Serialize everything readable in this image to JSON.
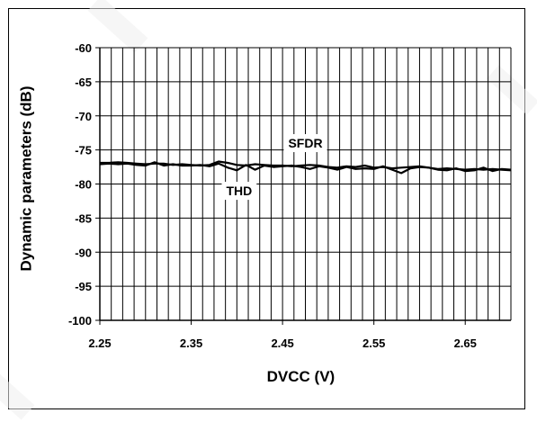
{
  "chart_data": {
    "type": "line",
    "xlabel": "DVCC (V)",
    "ylabel": "Dynamic parameters (dB)",
    "xlim": [
      2.25,
      2.7
    ],
    "ylim": [
      -100,
      -60
    ],
    "xticks": [
      2.25,
      2.35,
      2.45,
      2.55,
      2.65
    ],
    "yticks": [
      -60,
      -65,
      -70,
      -75,
      -80,
      -85,
      -90,
      -95,
      -100
    ],
    "x_gridline_step": 0.0125,
    "grid": true,
    "legend": "none",
    "annotations": [
      {
        "text": "SFDR",
        "series": "SFDR"
      },
      {
        "text": "THD",
        "series": "THD"
      }
    ],
    "series": [
      {
        "name": "SFDR",
        "x": [
          2.25,
          2.26,
          2.27,
          2.28,
          2.29,
          2.3,
          2.31,
          2.32,
          2.33,
          2.34,
          2.35,
          2.36,
          2.37,
          2.38,
          2.39,
          2.4,
          2.41,
          2.42,
          2.43,
          2.44,
          2.45,
          2.46,
          2.47,
          2.48,
          2.49,
          2.5,
          2.51,
          2.52,
          2.53,
          2.54,
          2.55,
          2.56,
          2.57,
          2.58,
          2.59,
          2.6,
          2.61,
          2.62,
          2.63,
          2.64,
          2.65,
          2.66,
          2.67,
          2.68,
          2.69,
          2.7
        ],
        "values": [
          -76.9,
          -76.9,
          -76.8,
          -76.9,
          -77.0,
          -77.1,
          -77.0,
          -77.0,
          -77.2,
          -77.1,
          -77.2,
          -77.3,
          -77.2,
          -76.7,
          -76.9,
          -77.2,
          -77.3,
          -77.1,
          -77.2,
          -77.3,
          -77.3,
          -77.4,
          -77.3,
          -77.2,
          -77.3,
          -77.5,
          -77.6,
          -77.4,
          -77.5,
          -77.3,
          -77.6,
          -77.5,
          -77.7,
          -77.6,
          -77.5,
          -77.4,
          -77.6,
          -77.8,
          -77.7,
          -77.8,
          -77.9,
          -77.8,
          -77.9,
          -77.8,
          -77.9,
          -78.0
        ]
      },
      {
        "name": "THD",
        "x": [
          2.25,
          2.26,
          2.27,
          2.28,
          2.29,
          2.3,
          2.31,
          2.32,
          2.33,
          2.34,
          2.35,
          2.36,
          2.37,
          2.38,
          2.39,
          2.4,
          2.41,
          2.42,
          2.43,
          2.44,
          2.45,
          2.46,
          2.47,
          2.48,
          2.49,
          2.5,
          2.51,
          2.52,
          2.53,
          2.54,
          2.55,
          2.56,
          2.57,
          2.58,
          2.59,
          2.6,
          2.61,
          2.62,
          2.63,
          2.64,
          2.65,
          2.66,
          2.67,
          2.68,
          2.69,
          2.7
        ],
        "values": [
          -77.1,
          -77.0,
          -77.1,
          -77.0,
          -77.2,
          -77.3,
          -76.8,
          -77.3,
          -77.1,
          -77.3,
          -77.3,
          -77.2,
          -77.4,
          -77.0,
          -77.6,
          -78.0,
          -77.2,
          -77.9,
          -77.3,
          -77.5,
          -77.4,
          -77.3,
          -77.5,
          -77.8,
          -77.4,
          -77.6,
          -77.9,
          -77.5,
          -77.8,
          -77.7,
          -77.8,
          -77.4,
          -77.9,
          -78.4,
          -77.7,
          -77.5,
          -77.6,
          -77.9,
          -78.0,
          -77.7,
          -78.1,
          -78.0,
          -77.6,
          -78.1,
          -77.8,
          -77.9
        ]
      }
    ]
  }
}
